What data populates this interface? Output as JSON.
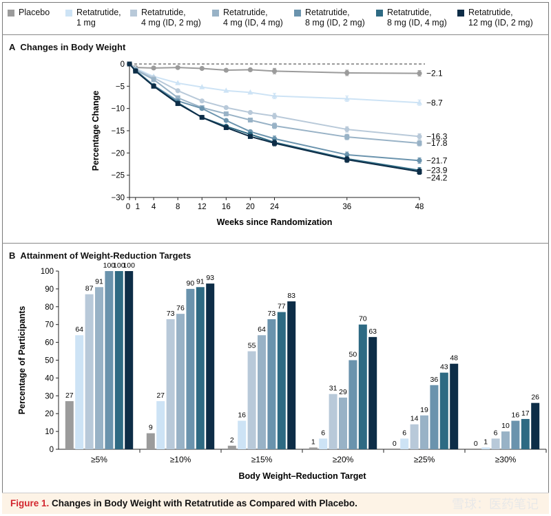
{
  "legend": [
    {
      "label": "Placebo",
      "color": "#9b9b9b"
    },
    {
      "label": "Retatrutide,\n1 mg",
      "color": "#cde3f5"
    },
    {
      "label": "Retatrutide,\n4 mg (ID, 2 mg)",
      "color": "#b8c9d9"
    },
    {
      "label": "Retatrutide,\n4 mg (ID, 4 mg)",
      "color": "#98b2c6"
    },
    {
      "label": "Retatrutide,\n8 mg (ID, 2 mg)",
      "color": "#6a93ad"
    },
    {
      "label": "Retatrutide,\n8 mg (ID, 4 mg)",
      "color": "#2e6a83"
    },
    {
      "label": "Retatrutide,\n12 mg (ID, 2 mg)",
      "color": "#0d2d47"
    }
  ],
  "panel_a": {
    "letter": "A",
    "title": "Changes in Body Weight"
  },
  "panel_b": {
    "letter": "B",
    "title": "Attainment of Weight-Reduction Targets"
  },
  "caption": {
    "figure_label": "Figure 1.",
    "text": "Changes in Body Weight with Retatrutide as Compared with Placebo."
  },
  "watermark": "雪球：医药笔记",
  "chart_data": [
    {
      "type": "line",
      "title": "Changes in Body Weight",
      "xlabel": "Weeks since Randomization",
      "ylabel": "Percentage Change",
      "xlim": [
        0,
        48
      ],
      "ylim": [
        -30,
        0
      ],
      "xticks": [
        0,
        1,
        4,
        8,
        12,
        16,
        20,
        24,
        36,
        48
      ],
      "yticks": [
        0,
        -5,
        -10,
        -15,
        -20,
        -25,
        -30
      ],
      "reference_line": 0,
      "series": [
        {
          "name": "Placebo",
          "color": "#9b9b9b",
          "marker": "circle",
          "x": [
            0,
            1,
            4,
            8,
            12,
            16,
            20,
            24,
            36,
            48
          ],
          "y": [
            0,
            -0.8,
            -0.9,
            -0.8,
            -1.0,
            -1.4,
            -1.3,
            -1.6,
            -2.0,
            -2.1
          ],
          "end_label": "−2.1"
        },
        {
          "name": "Retatrutide, 1 mg",
          "color": "#cde3f5",
          "marker": "triangle",
          "x": [
            0,
            1,
            4,
            8,
            12,
            16,
            20,
            24,
            36,
            48
          ],
          "y": [
            0,
            -1.0,
            -2.8,
            -4.3,
            -5.2,
            -6.0,
            -6.4,
            -7.2,
            -7.8,
            -8.7
          ],
          "end_label": "−8.7"
        },
        {
          "name": "Retatrutide, 4 mg (ID, 2 mg)",
          "color": "#b8c9d9",
          "marker": "circle",
          "x": [
            0,
            1,
            4,
            8,
            12,
            16,
            20,
            24,
            36,
            48
          ],
          "y": [
            0,
            -1.2,
            -3.1,
            -6.0,
            -8.3,
            -9.8,
            -10.9,
            -11.7,
            -14.7,
            -16.3
          ],
          "end_label": "−16.3"
        },
        {
          "name": "Retatrutide, 4 mg (ID, 4 mg)",
          "color": "#98b2c6",
          "marker": "square",
          "x": [
            0,
            1,
            4,
            8,
            12,
            16,
            20,
            24,
            36,
            48
          ],
          "y": [
            0,
            -1.3,
            -3.5,
            -7.6,
            -9.8,
            -11.2,
            -12.6,
            -13.9,
            -16.4,
            -17.8
          ],
          "end_label": "−17.8"
        },
        {
          "name": "Retatrutide, 8 mg (ID, 2 mg)",
          "color": "#6a93ad",
          "marker": "circle",
          "x": [
            0,
            1,
            4,
            8,
            12,
            16,
            20,
            24,
            36,
            48
          ],
          "y": [
            0,
            -1.4,
            -4.8,
            -8.3,
            -10.0,
            -12.7,
            -15.2,
            -16.8,
            -20.4,
            -21.7
          ],
          "end_label": "−21.7"
        },
        {
          "name": "Retatrutide, 8 mg (ID, 4 mg)",
          "color": "#2e6a83",
          "marker": "circle",
          "x": [
            0,
            1,
            4,
            8,
            12,
            16,
            20,
            24,
            36,
            48
          ],
          "y": [
            0,
            -1.5,
            -4.9,
            -8.7,
            -12.0,
            -14.0,
            -15.8,
            -17.6,
            -21.3,
            -23.9
          ],
          "end_label": "−23.9"
        },
        {
          "name": "Retatrutide, 12 mg (ID, 2 mg)",
          "color": "#0d2d47",
          "marker": "square",
          "x": [
            0,
            1,
            4,
            8,
            12,
            16,
            20,
            24,
            36,
            48
          ],
          "y": [
            0,
            -1.6,
            -5.0,
            -8.9,
            -12.0,
            -14.3,
            -16.3,
            -17.8,
            -21.5,
            -24.2
          ],
          "end_label": "−24.2"
        }
      ]
    },
    {
      "type": "bar",
      "title": "Attainment of Weight-Reduction Targets",
      "xlabel": "Body Weight–Reduction Target",
      "ylabel": "Percentage of Participants",
      "ylim": [
        0,
        100
      ],
      "yticks": [
        0,
        10,
        20,
        30,
        40,
        50,
        60,
        70,
        80,
        90,
        100
      ],
      "categories": [
        "≥5%",
        "≥10%",
        "≥15%",
        "≥20%",
        "≥25%",
        "≥30%"
      ],
      "series": [
        {
          "name": "Placebo",
          "color": "#9b9b9b",
          "values": [
            27,
            9,
            2,
            1,
            0,
            0
          ]
        },
        {
          "name": "Retatrutide, 1 mg",
          "color": "#cde3f5",
          "values": [
            64,
            27,
            16,
            6,
            6,
            1
          ]
        },
        {
          "name": "Retatrutide, 4 mg (ID, 2 mg)",
          "color": "#b8c9d9",
          "values": [
            87,
            73,
            55,
            31,
            14,
            6
          ]
        },
        {
          "name": "Retatrutide, 4 mg (ID, 4 mg)",
          "color": "#98b2c6",
          "values": [
            91,
            76,
            64,
            29,
            19,
            10
          ]
        },
        {
          "name": "Retatrutide, 8 mg (ID, 2 mg)",
          "color": "#6a93ad",
          "values": [
            100,
            90,
            73,
            50,
            36,
            16
          ]
        },
        {
          "name": "Retatrutide, 8 mg (ID, 4 mg)",
          "color": "#2e6a83",
          "values": [
            100,
            91,
            77,
            70,
            43,
            17
          ]
        },
        {
          "name": "Retatrutide, 12 mg (ID, 2 mg)",
          "color": "#0d2d47",
          "values": [
            100,
            93,
            83,
            63,
            48,
            26
          ]
        }
      ]
    }
  ]
}
